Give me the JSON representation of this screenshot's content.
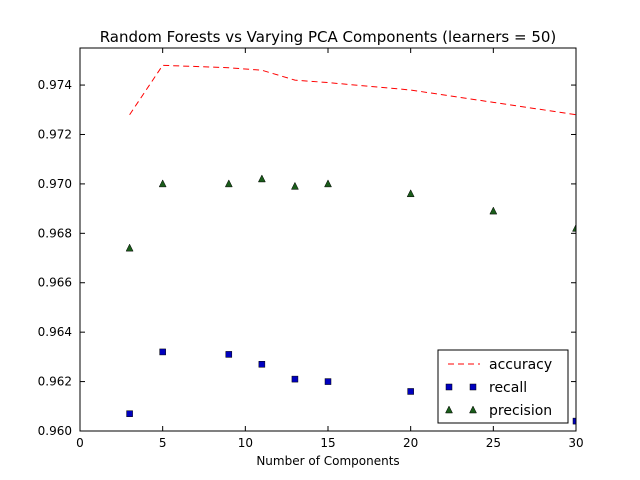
{
  "chart_data": {
    "type": "line",
    "title": "Random Forests vs Varying PCA Components (learners = 50)",
    "xlabel": "Number of Components",
    "ylabel": "",
    "xlim": [
      0,
      30
    ],
    "ylim": [
      0.96,
      0.9755
    ],
    "xticks": [
      0,
      5,
      10,
      15,
      20,
      25,
      30
    ],
    "xtick_labels": [
      "0",
      "5",
      "10",
      "15",
      "20",
      "25",
      "30"
    ],
    "yticks": [
      0.96,
      0.962,
      0.964,
      0.966,
      0.968,
      0.97,
      0.972,
      0.974
    ],
    "ytick_labels": [
      "0.960",
      "0.962",
      "0.964",
      "0.966",
      "0.968",
      "0.970",
      "0.972",
      "0.974"
    ],
    "grid": false,
    "legend_position": "bottom-right",
    "series": [
      {
        "name": "accuracy",
        "style": "dashed-line",
        "color": "#ff0000",
        "x": [
          3,
          5,
          9,
          11,
          13,
          15,
          20,
          25,
          30
        ],
        "y": [
          0.9728,
          0.9748,
          0.9747,
          0.9746,
          0.9742,
          0.9741,
          0.9738,
          0.9733,
          0.9728
        ]
      },
      {
        "name": "recall",
        "style": "square-marker",
        "color": "#0000bf",
        "x": [
          3,
          5,
          9,
          11,
          13,
          15,
          20,
          30
        ],
        "y": [
          0.9607,
          0.9632,
          0.9631,
          0.9627,
          0.9621,
          0.962,
          0.9616,
          0.9604
        ]
      },
      {
        "name": "precision",
        "style": "triangle-marker",
        "color": "#1a5c1a",
        "x": [
          3,
          5,
          9,
          11,
          13,
          15,
          20,
          25,
          30
        ],
        "y": [
          0.9674,
          0.97,
          0.97,
          0.9702,
          0.9699,
          0.97,
          0.9696,
          0.9689,
          0.9682
        ]
      }
    ]
  }
}
